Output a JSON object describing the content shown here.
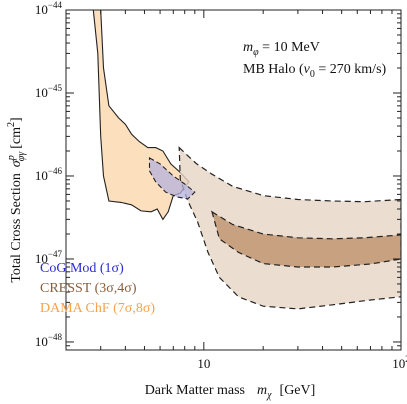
{
  "chart_data": {
    "type": "area",
    "xscale": "log",
    "yscale": "log",
    "xlim": [
      2,
      100
    ],
    "ylim": [
      8e-49,
      1e-44
    ],
    "xlabel_main": "Dark Matter mass",
    "xlabel_symbol": "m",
    "xlabel_sub": "χ",
    "xlabel_unit": "[GeV]",
    "ylabel_main": "Total Cross Section",
    "ylabel_symbol": "σ",
    "ylabel_sup": "p",
    "ylabel_sub": "φγ",
    "ylabel_unit": "[cm",
    "ylabel_unit_sup": "2",
    "ylabel_unit_close": "]",
    "x_ticks": [
      {
        "value": 10,
        "label": "10"
      },
      {
        "value": 100,
        "label": "10",
        "sup": "2"
      }
    ],
    "y_ticks": [
      {
        "value": 1e-44,
        "label": "10",
        "sup": "−44"
      },
      {
        "value": 1e-45,
        "label": "10",
        "sup": "−45"
      },
      {
        "value": 1e-46,
        "label": "10",
        "sup": "−46"
      },
      {
        "value": 1e-47,
        "label": "10",
        "sup": "−47"
      },
      {
        "value": 1e-48,
        "label": "10",
        "sup": "−48"
      }
    ],
    "annotation": {
      "line1_symbol": "m",
      "line1_sub": "φ",
      "line1_rest": " = 10 MeV",
      "line2_main": "MB Halo (",
      "line2_symbol": "v",
      "line2_sub": "0",
      "line2_rest": " = 270 km/s)"
    },
    "series": [
      {
        "name": "DAMA ChF (7σ,8σ)",
        "color": "#f7a24b",
        "fill": "#fcd9b0",
        "style": "solid-boundary",
        "regions": [
          {
            "level": "outer",
            "points": [
              [
                3.0,
                1e-44
              ],
              [
                3.1,
                2e-45
              ],
              [
                3.3,
                7e-46
              ],
              [
                3.7,
                5e-46
              ],
              [
                4.0,
                4.2e-46
              ],
              [
                4.3,
                3.2e-46
              ],
              [
                4.7,
                2.6e-46
              ],
              [
                5.2,
                2.2e-46
              ],
              [
                5.7,
                2.2e-46
              ],
              [
                6.2,
                2e-46
              ],
              [
                6.8,
                1.4e-46
              ],
              [
                7.6,
                1.1e-46
              ],
              [
                8.4,
                8.5e-47
              ],
              [
                7.6,
                6.2e-47
              ],
              [
                7.0,
                5.8e-47
              ],
              [
                6.6,
                3.7e-47
              ],
              [
                6.2,
                3e-47
              ],
              [
                5.8,
                4e-47
              ],
              [
                5.4,
                3.7e-47
              ],
              [
                4.8,
                3.8e-47
              ],
              [
                4.3,
                4.5e-47
              ],
              [
                3.8,
                4.8e-47
              ],
              [
                3.3,
                5e-47
              ],
              [
                3.1,
                1e-46
              ],
              [
                3.0,
                3e-46
              ],
              [
                2.9,
                3e-45
              ],
              [
                2.75,
                1e-44
              ]
            ]
          }
        ]
      },
      {
        "name": "CRESST (3σ,4σ)",
        "color": "#8b5e3c",
        "fill_outer": "#e6d6c4",
        "fill_inner": "#c49a78",
        "style": "dashed-boundary",
        "regions": [
          {
            "level": "outer",
            "points": [
              [
                7.5,
                2.2e-46
              ],
              [
                8.2,
                1.8e-46
              ],
              [
                9.2,
                1.4e-46
              ],
              [
                11,
                1.05e-46
              ],
              [
                14,
                7.5e-47
              ],
              [
                20,
                5.8e-47
              ],
              [
                30,
                5.2e-47
              ],
              [
                45,
                5e-47
              ],
              [
                65,
                4.9e-47
              ],
              [
                100,
                5.2e-47
              ],
              [
                100,
                3.5e-48
              ],
              [
                70,
                3.2e-48
              ],
              [
                45,
                2.8e-48
              ],
              [
                30,
                2.5e-48
              ],
              [
                20,
                2.7e-48
              ],
              [
                15,
                3.5e-48
              ],
              [
                12,
                6e-48
              ],
              [
                10.5,
                1.2e-47
              ],
              [
                9.3,
                2.8e-47
              ],
              [
                8.3,
                5e-47
              ],
              [
                7.6,
                9e-47
              ]
            ]
          },
          {
            "level": "inner",
            "points": [
              [
                11,
                3.7e-47
              ],
              [
                14,
                2.6e-47
              ],
              [
                20,
                2e-47
              ],
              [
                30,
                1.8e-47
              ],
              [
                45,
                1.75e-47
              ],
              [
                65,
                1.8e-47
              ],
              [
                100,
                1.95e-47
              ],
              [
                100,
                1e-47
              ],
              [
                70,
                8.7e-48
              ],
              [
                45,
                8e-48
              ],
              [
                30,
                8e-48
              ],
              [
                20,
                8.8e-48
              ],
              [
                15,
                1.2e-47
              ],
              [
                12,
                1.75e-47
              ]
            ]
          }
        ]
      },
      {
        "name": "CoG Mod (1σ)",
        "color": "#2b2bd6",
        "fill": "#b6b3df",
        "style": "dashed-boundary",
        "regions": [
          {
            "level": "outer",
            "points": [
              [
                5.3,
                1.65e-46
              ],
              [
                6.0,
                1.4e-46
              ],
              [
                7.0,
                1e-46
              ],
              [
                8.0,
                8e-47
              ],
              [
                9.0,
                6.4e-47
              ],
              [
                8.3,
                5.3e-47
              ],
              [
                7.3,
                5.6e-47
              ],
              [
                6.4,
                6.4e-47
              ],
              [
                5.7,
                8.5e-47
              ],
              [
                5.3,
                1.15e-46
              ]
            ]
          }
        ]
      }
    ],
    "legend_position": "lower-left",
    "grid": false
  }
}
